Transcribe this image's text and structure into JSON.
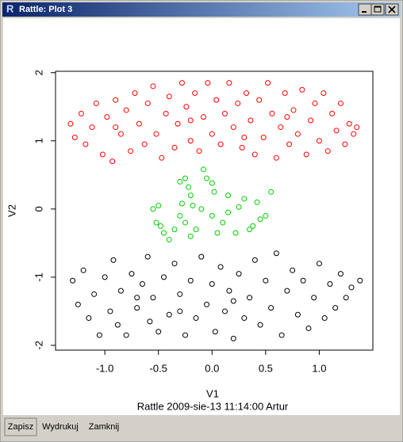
{
  "window": {
    "title": "Rattle: Plot 3"
  },
  "toolbar": {
    "buttons": [
      "Zapisz",
      "Wydrukuj",
      "Zamknij"
    ]
  },
  "chart_data": {
    "type": "scatter",
    "subtitle": "Rattle 2009-sie-13 11:14:00 Artur",
    "xlabel": "V1",
    "ylabel": "V2",
    "xlim": [
      -1.46,
      1.5
    ],
    "ylim": [
      -2.07,
      2.02
    ],
    "xticks": [
      {
        "value": -1,
        "label": "-1.0"
      },
      -0.5,
      {
        "value": 0,
        "label": "0.0"
      },
      0.5,
      {
        "value": 1,
        "label": "1.0"
      }
    ],
    "yticks": [
      -2,
      -1,
      0,
      1,
      2
    ],
    "series": [
      {
        "color": "#ff0000",
        "x": [
          -1.32,
          -1.28,
          -1.22,
          -1.18,
          -1.12,
          -1.08,
          -1.02,
          -0.98,
          -0.93,
          -0.9,
          -0.85,
          -0.8,
          -0.76,
          -0.72,
          -0.68,
          -0.63,
          -0.6,
          -0.55,
          -0.52,
          -0.47,
          -0.43,
          -0.4,
          -0.35,
          -0.32,
          -0.28,
          -0.24,
          -0.2,
          -0.16,
          -0.12,
          -0.08,
          -0.04,
          0.0,
          0.04,
          0.08,
          0.12,
          0.16,
          0.2,
          0.24,
          0.28,
          0.32,
          0.36,
          0.4,
          0.44,
          0.48,
          0.52,
          0.56,
          0.6,
          0.64,
          0.68,
          0.72,
          0.76,
          0.8,
          0.84,
          0.88,
          0.92,
          0.96,
          1.0,
          1.04,
          1.08,
          1.12,
          1.16,
          1.2,
          1.24,
          1.28,
          1.32,
          1.35,
          -0.9,
          0.3,
          -0.2,
          0.7
        ],
        "values": [
          1.25,
          1.05,
          1.4,
          0.95,
          1.2,
          1.55,
          0.8,
          1.35,
          0.7,
          1.6,
          1.1,
          1.45,
          0.85,
          1.7,
          1.25,
          0.95,
          1.55,
          1.8,
          1.1,
          0.75,
          1.4,
          1.65,
          0.9,
          1.25,
          1.85,
          1.5,
          1.0,
          1.7,
          0.85,
          1.35,
          1.85,
          1.1,
          1.6,
          0.95,
          1.4,
          1.85,
          1.2,
          1.55,
          0.9,
          1.7,
          1.3,
          0.8,
          1.6,
          1.05,
          1.85,
          1.4,
          0.75,
          1.2,
          1.7,
          0.95,
          1.45,
          1.1,
          1.75,
          0.8,
          1.3,
          1.55,
          1.0,
          1.7,
          0.85,
          1.4,
          1.15,
          1.55,
          0.95,
          1.25,
          1.1,
          1.2,
          1.2,
          1.05,
          1.3,
          1.35
        ]
      },
      {
        "color": "#00cd00",
        "x": [
          -0.55,
          -0.52,
          -0.5,
          -0.48,
          -0.45,
          -0.4,
          -0.35,
          -0.3,
          -0.3,
          -0.28,
          -0.25,
          -0.25,
          -0.22,
          -0.2,
          -0.2,
          -0.18,
          -0.15,
          -0.1,
          -0.08,
          -0.05,
          0.0,
          0.0,
          0.02,
          0.05,
          0.1,
          0.15,
          0.15,
          0.22,
          0.25,
          0.3,
          0.35,
          0.38,
          0.42,
          0.45,
          0.5,
          0.55
        ],
        "values": [
          0.0,
          -0.2,
          0.05,
          -0.25,
          -0.35,
          -0.45,
          -0.3,
          -0.1,
          0.4,
          0.08,
          -0.2,
          0.45,
          0.32,
          0.2,
          -0.4,
          0.05,
          -0.3,
          0.0,
          0.58,
          0.45,
          0.38,
          -0.1,
          0.25,
          -0.35,
          -0.2,
          -0.05,
          0.2,
          -0.35,
          0.03,
          0.15,
          -0.3,
          -0.25,
          0.1,
          -0.15,
          -0.1,
          0.25
        ]
      },
      {
        "color": "#000000",
        "x": [
          -1.3,
          -1.25,
          -1.2,
          -1.15,
          -1.1,
          -1.05,
          -1.0,
          -0.95,
          -0.92,
          -0.88,
          -0.85,
          -0.8,
          -0.75,
          -0.7,
          -0.65,
          -0.6,
          -0.58,
          -0.55,
          -0.5,
          -0.45,
          -0.4,
          -0.35,
          -0.3,
          -0.25,
          -0.2,
          -0.15,
          -0.1,
          -0.05,
          0.0,
          0.03,
          0.08,
          0.12,
          0.16,
          0.2,
          0.25,
          0.3,
          0.35,
          0.4,
          0.45,
          0.5,
          0.55,
          0.6,
          0.65,
          0.7,
          0.75,
          0.8,
          0.85,
          0.9,
          0.95,
          1.0,
          1.05,
          1.1,
          1.15,
          1.2,
          1.25,
          1.3,
          1.38,
          -0.7,
          0.2,
          -0.3
        ],
        "values": [
          -1.05,
          -1.4,
          -0.9,
          -1.6,
          -1.25,
          -1.85,
          -1.0,
          -1.5,
          -0.75,
          -1.7,
          -1.2,
          -1.85,
          -0.95,
          -1.45,
          -1.1,
          -0.7,
          -1.65,
          -1.3,
          -1.8,
          -1.0,
          -1.55,
          -0.8,
          -1.25,
          -1.85,
          -1.05,
          -1.6,
          -0.7,
          -1.4,
          -1.1,
          -1.8,
          -0.85,
          -1.5,
          -1.2,
          -1.9,
          -0.95,
          -1.6,
          -1.3,
          -0.75,
          -1.7,
          -1.05,
          -1.45,
          -0.65,
          -1.85,
          -1.2,
          -0.9,
          -1.55,
          -1.05,
          -1.75,
          -1.3,
          -0.8,
          -1.6,
          -1.1,
          -1.45,
          -0.95,
          -1.3,
          -1.15,
          -1.05,
          -1.3,
          -1.35,
          -1.5
        ]
      }
    ]
  }
}
